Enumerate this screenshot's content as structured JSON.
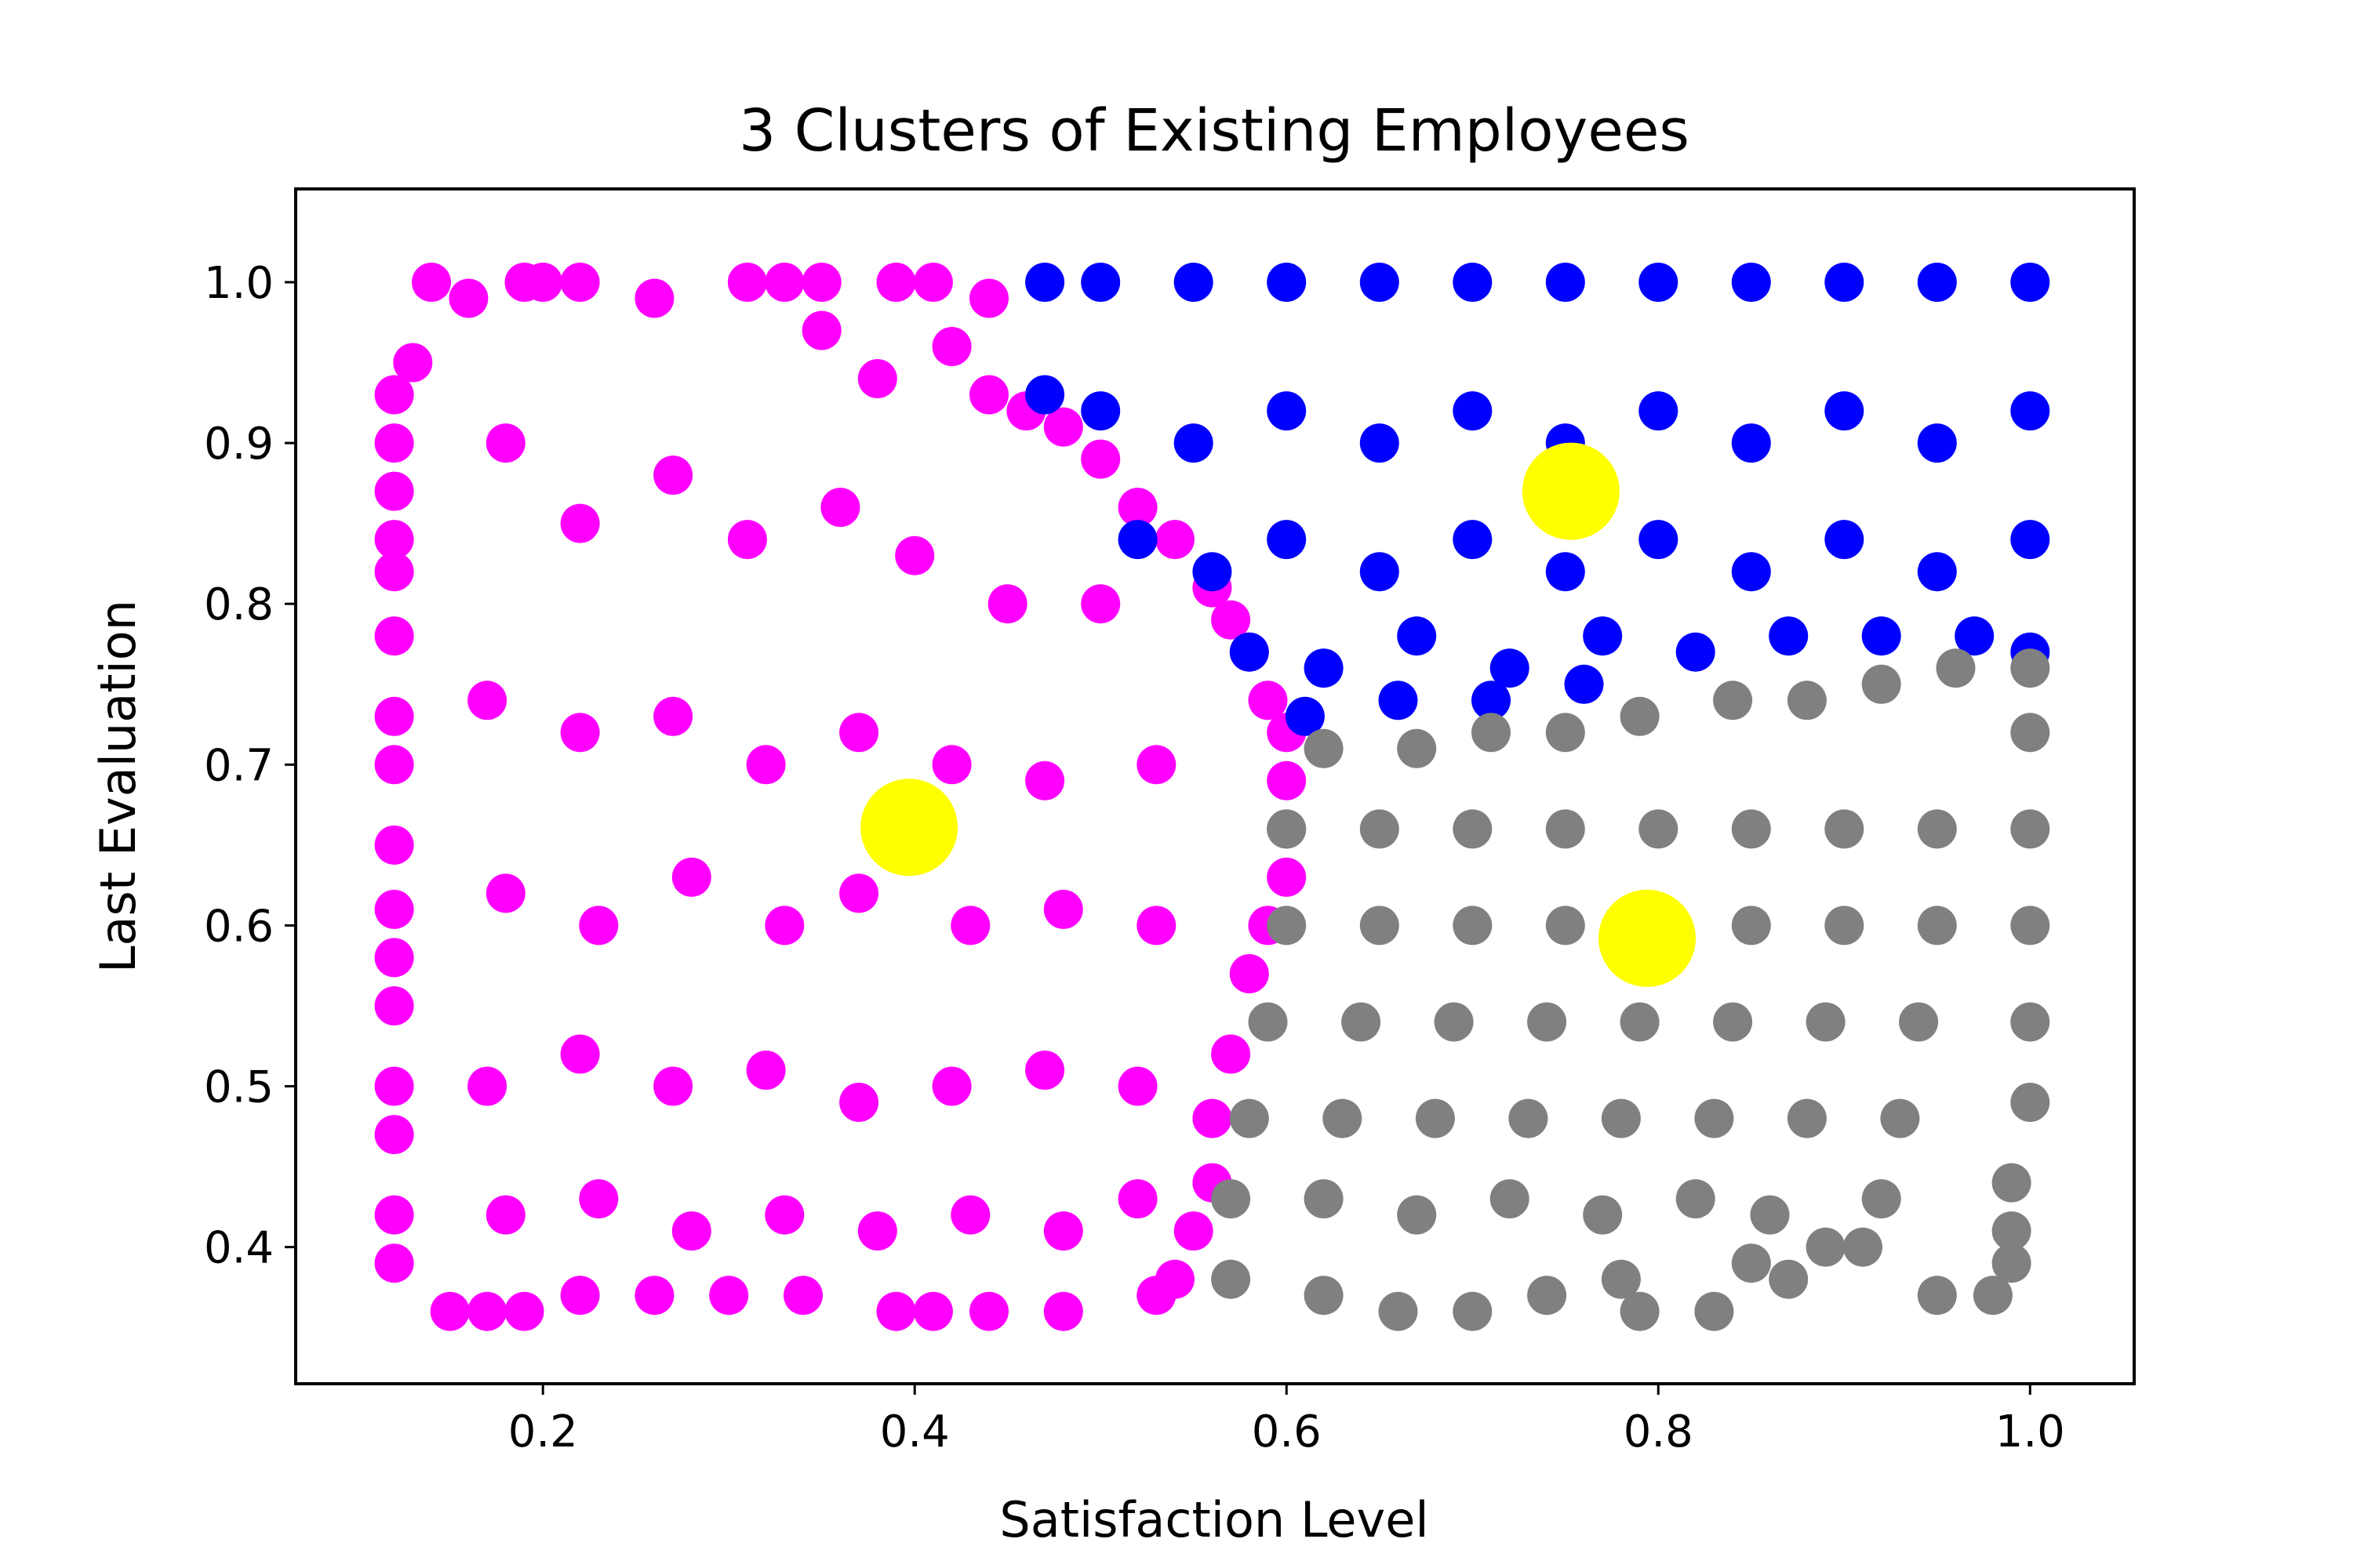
{
  "chart_data": {
    "type": "scatter",
    "title": "3 Clusters of Existing Employees",
    "xlabel": "Satisfaction Level",
    "ylabel": "Last Evaluation",
    "xlim": [
      0.067,
      1.056
    ],
    "ylim": [
      0.315,
      1.058
    ],
    "xticks": [
      0.2,
      0.4,
      0.6,
      0.8,
      1.0
    ],
    "xtick_labels": [
      "0.2",
      "0.4",
      "0.6",
      "0.8",
      "1.0"
    ],
    "yticks": [
      0.4,
      0.5,
      0.6,
      0.7,
      0.8,
      0.9,
      1.0
    ],
    "ytick_labels": [
      "0.4",
      "0.5",
      "0.6",
      "0.7",
      "0.8",
      "0.9",
      "1.0"
    ],
    "grid": false,
    "legend": "none",
    "colors": {
      "cluster_low_satisfaction": "#ff00ff",
      "cluster_high_eval": "#0000ff",
      "cluster_low_eval": "#808080",
      "centroid": "#ffff00"
    },
    "series": [
      {
        "color": "#ff00ff",
        "points": [
          [
            0.13,
            0.95
          ],
          [
            0.14,
            1.0
          ],
          [
            0.16,
            0.99
          ],
          [
            0.19,
            1.0
          ],
          [
            0.2,
            1.0
          ],
          [
            0.22,
            1.0
          ],
          [
            0.26,
            0.99
          ],
          [
            0.31,
            1.0
          ],
          [
            0.33,
            1.0
          ],
          [
            0.35,
            1.0
          ],
          [
            0.39,
            1.0
          ],
          [
            0.41,
            1.0
          ],
          [
            0.44,
            0.99
          ],
          [
            0.12,
            0.93
          ],
          [
            0.12,
            0.9
          ],
          [
            0.12,
            0.87
          ],
          [
            0.12,
            0.84
          ],
          [
            0.12,
            0.82
          ],
          [
            0.12,
            0.78
          ],
          [
            0.12,
            0.73
          ],
          [
            0.12,
            0.7
          ],
          [
            0.12,
            0.65
          ],
          [
            0.12,
            0.61
          ],
          [
            0.12,
            0.58
          ],
          [
            0.12,
            0.55
          ],
          [
            0.12,
            0.5
          ],
          [
            0.12,
            0.47
          ],
          [
            0.12,
            0.42
          ],
          [
            0.12,
            0.39
          ],
          [
            0.15,
            0.36
          ],
          [
            0.17,
            0.36
          ],
          [
            0.19,
            0.36
          ],
          [
            0.22,
            0.37
          ],
          [
            0.26,
            0.37
          ],
          [
            0.3,
            0.37
          ],
          [
            0.34,
            0.37
          ],
          [
            0.39,
            0.36
          ],
          [
            0.41,
            0.36
          ],
          [
            0.44,
            0.36
          ],
          [
            0.48,
            0.36
          ],
          [
            0.53,
            0.37
          ],
          [
            0.35,
            0.97
          ],
          [
            0.38,
            0.94
          ],
          [
            0.42,
            0.96
          ],
          [
            0.44,
            0.93
          ],
          [
            0.46,
            0.92
          ],
          [
            0.48,
            0.91
          ],
          [
            0.5,
            0.89
          ],
          [
            0.52,
            0.86
          ],
          [
            0.54,
            0.84
          ],
          [
            0.56,
            0.81
          ],
          [
            0.57,
            0.79
          ],
          [
            0.58,
            0.77
          ],
          [
            0.59,
            0.74
          ],
          [
            0.6,
            0.72
          ],
          [
            0.6,
            0.69
          ],
          [
            0.6,
            0.66
          ],
          [
            0.6,
            0.63
          ],
          [
            0.59,
            0.6
          ],
          [
            0.58,
            0.57
          ],
          [
            0.57,
            0.52
          ],
          [
            0.56,
            0.48
          ],
          [
            0.56,
            0.44
          ],
          [
            0.55,
            0.41
          ],
          [
            0.54,
            0.38
          ],
          [
            0.18,
            0.9
          ],
          [
            0.22,
            0.85
          ],
          [
            0.27,
            0.88
          ],
          [
            0.31,
            0.84
          ],
          [
            0.36,
            0.86
          ],
          [
            0.4,
            0.83
          ],
          [
            0.45,
            0.8
          ],
          [
            0.5,
            0.8
          ],
          [
            0.17,
            0.74
          ],
          [
            0.22,
            0.72
          ],
          [
            0.27,
            0.73
          ],
          [
            0.32,
            0.7
          ],
          [
            0.37,
            0.72
          ],
          [
            0.42,
            0.7
          ],
          [
            0.47,
            0.69
          ],
          [
            0.53,
            0.7
          ],
          [
            0.18,
            0.62
          ],
          [
            0.23,
            0.6
          ],
          [
            0.28,
            0.63
          ],
          [
            0.33,
            0.6
          ],
          [
            0.37,
            0.62
          ],
          [
            0.43,
            0.6
          ],
          [
            0.48,
            0.61
          ],
          [
            0.53,
            0.6
          ],
          [
            0.17,
            0.5
          ],
          [
            0.22,
            0.52
          ],
          [
            0.27,
            0.5
          ],
          [
            0.32,
            0.51
          ],
          [
            0.37,
            0.49
          ],
          [
            0.42,
            0.5
          ],
          [
            0.47,
            0.51
          ],
          [
            0.52,
            0.5
          ],
          [
            0.18,
            0.42
          ],
          [
            0.23,
            0.43
          ],
          [
            0.28,
            0.41
          ],
          [
            0.33,
            0.42
          ],
          [
            0.38,
            0.41
          ],
          [
            0.43,
            0.42
          ],
          [
            0.48,
            0.41
          ],
          [
            0.52,
            0.43
          ]
        ]
      },
      {
        "color": "#0000ff",
        "points": [
          [
            0.47,
            1.0
          ],
          [
            0.47,
            0.93
          ],
          [
            0.5,
            1.0
          ],
          [
            0.55,
            1.0
          ],
          [
            0.6,
            1.0
          ],
          [
            0.65,
            1.0
          ],
          [
            0.7,
            1.0
          ],
          [
            0.75,
            1.0
          ],
          [
            0.8,
            1.0
          ],
          [
            0.85,
            1.0
          ],
          [
            0.9,
            1.0
          ],
          [
            0.95,
            1.0
          ],
          [
            1.0,
            1.0
          ],
          [
            0.5,
            0.92
          ],
          [
            0.55,
            0.9
          ],
          [
            0.6,
            0.92
          ],
          [
            0.65,
            0.9
          ],
          [
            0.7,
            0.92
          ],
          [
            0.75,
            0.9
          ],
          [
            0.8,
            0.92
          ],
          [
            0.85,
            0.9
          ],
          [
            0.9,
            0.92
          ],
          [
            0.95,
            0.9
          ],
          [
            1.0,
            0.92
          ],
          [
            0.52,
            0.84
          ],
          [
            0.56,
            0.82
          ],
          [
            0.6,
            0.84
          ],
          [
            0.65,
            0.82
          ],
          [
            0.7,
            0.84
          ],
          [
            0.75,
            0.82
          ],
          [
            0.8,
            0.84
          ],
          [
            0.85,
            0.82
          ],
          [
            0.9,
            0.84
          ],
          [
            0.95,
            0.82
          ],
          [
            1.0,
            0.84
          ],
          [
            0.58,
            0.77
          ],
          [
            0.62,
            0.76
          ],
          [
            0.67,
            0.78
          ],
          [
            0.72,
            0.76
          ],
          [
            0.77,
            0.78
          ],
          [
            0.82,
            0.77
          ],
          [
            0.87,
            0.78
          ],
          [
            0.92,
            0.78
          ],
          [
            0.97,
            0.78
          ],
          [
            1.0,
            0.77
          ],
          [
            0.61,
            0.73
          ],
          [
            0.66,
            0.74
          ],
          [
            0.71,
            0.74
          ],
          [
            0.76,
            0.75
          ]
        ]
      },
      {
        "color": "#808080",
        "points": [
          [
            0.62,
            0.71
          ],
          [
            0.67,
            0.71
          ],
          [
            0.71,
            0.72
          ],
          [
            0.75,
            0.72
          ],
          [
            0.79,
            0.73
          ],
          [
            0.84,
            0.74
          ],
          [
            0.88,
            0.74
          ],
          [
            0.92,
            0.75
          ],
          [
            0.96,
            0.76
          ],
          [
            1.0,
            0.76
          ],
          [
            1.0,
            0.72
          ],
          [
            0.6,
            0.66
          ],
          [
            0.65,
            0.66
          ],
          [
            0.7,
            0.66
          ],
          [
            0.75,
            0.66
          ],
          [
            0.8,
            0.66
          ],
          [
            0.85,
            0.66
          ],
          [
            0.9,
            0.66
          ],
          [
            0.95,
            0.66
          ],
          [
            1.0,
            0.66
          ],
          [
            0.6,
            0.6
          ],
          [
            0.65,
            0.6
          ],
          [
            0.7,
            0.6
          ],
          [
            0.75,
            0.6
          ],
          [
            0.8,
            0.6
          ],
          [
            0.85,
            0.6
          ],
          [
            0.9,
            0.6
          ],
          [
            0.95,
            0.6
          ],
          [
            1.0,
            0.6
          ],
          [
            0.59,
            0.54
          ],
          [
            0.64,
            0.54
          ],
          [
            0.69,
            0.54
          ],
          [
            0.74,
            0.54
          ],
          [
            0.79,
            0.54
          ],
          [
            0.84,
            0.54
          ],
          [
            0.89,
            0.54
          ],
          [
            0.94,
            0.54
          ],
          [
            1.0,
            0.54
          ],
          [
            0.58,
            0.48
          ],
          [
            0.63,
            0.48
          ],
          [
            0.68,
            0.48
          ],
          [
            0.73,
            0.48
          ],
          [
            0.78,
            0.48
          ],
          [
            0.83,
            0.48
          ],
          [
            0.88,
            0.48
          ],
          [
            0.93,
            0.48
          ],
          [
            1.0,
            0.49
          ],
          [
            0.57,
            0.43
          ],
          [
            0.62,
            0.43
          ],
          [
            0.67,
            0.42
          ],
          [
            0.72,
            0.43
          ],
          [
            0.77,
            0.42
          ],
          [
            0.82,
            0.43
          ],
          [
            0.86,
            0.42
          ],
          [
            0.92,
            0.43
          ],
          [
            0.99,
            0.44
          ],
          [
            0.57,
            0.38
          ],
          [
            0.62,
            0.37
          ],
          [
            0.66,
            0.36
          ],
          [
            0.7,
            0.36
          ],
          [
            0.74,
            0.37
          ],
          [
            0.78,
            0.38
          ],
          [
            0.79,
            0.36
          ],
          [
            0.83,
            0.36
          ],
          [
            0.85,
            0.39
          ],
          [
            0.87,
            0.38
          ],
          [
            0.89,
            0.4
          ],
          [
            0.91,
            0.4
          ],
          [
            0.95,
            0.37
          ],
          [
            0.98,
            0.37
          ],
          [
            0.99,
            0.41
          ],
          [
            0.99,
            0.39
          ]
        ]
      }
    ],
    "centroids": [
      {
        "x": 0.753,
        "y": 0.87
      },
      {
        "x": 0.397,
        "y": 0.661
      },
      {
        "x": 0.794,
        "y": 0.592
      }
    ]
  }
}
